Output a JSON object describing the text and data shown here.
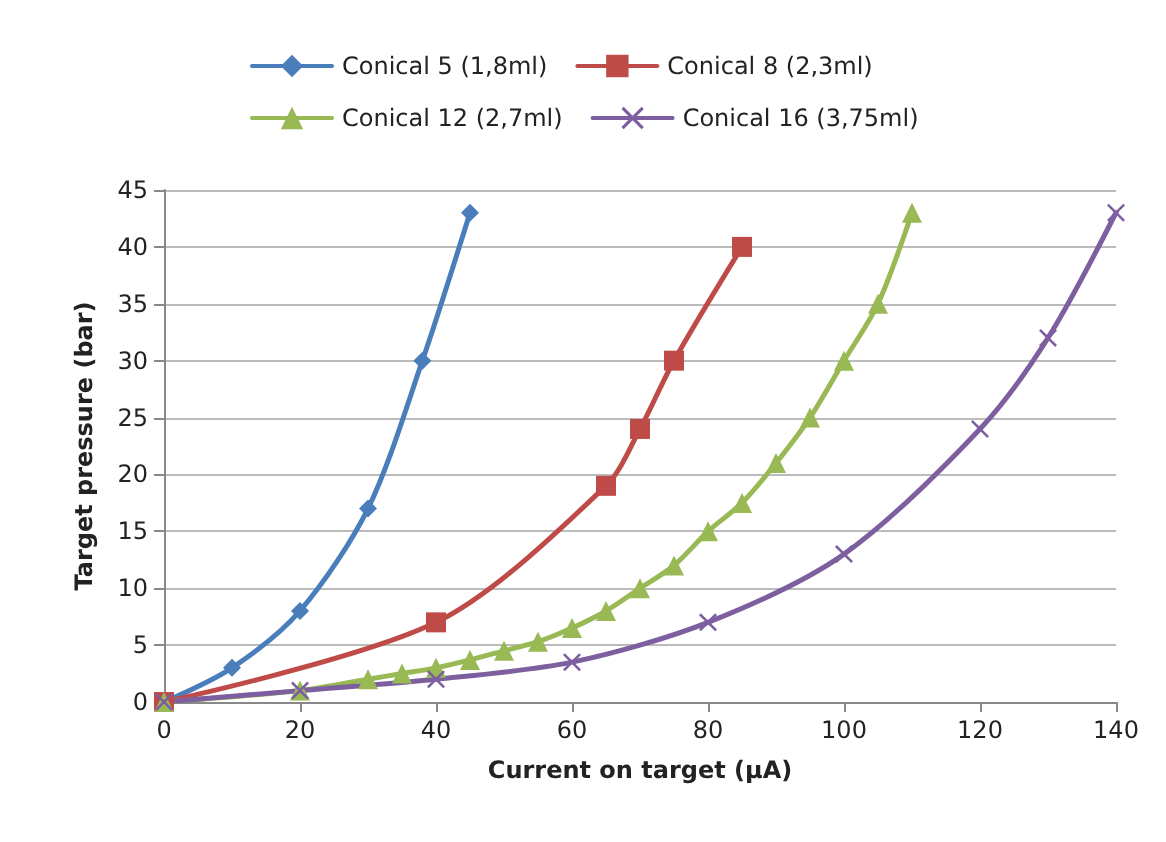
{
  "chart_data": {
    "type": "line",
    "xlabel": "Current on target (µA)",
    "ylabel": "Target pressure (bar)",
    "xlim": [
      0,
      140
    ],
    "xticks": [
      0,
      20,
      40,
      60,
      80,
      100,
      120,
      140
    ],
    "ylim": [
      0,
      45
    ],
    "yticks": [
      0,
      5,
      10,
      15,
      20,
      25,
      30,
      35,
      40,
      45
    ],
    "grid": "y",
    "legend": "top",
    "line_style": "solid",
    "series": [
      {
        "name": "Conical 5 (1,8ml)",
        "color": "#4a7ebb",
        "marker": "diamond",
        "x": [
          0,
          10,
          20,
          30,
          38,
          45
        ],
        "values": [
          0,
          3,
          8,
          17,
          30,
          43
        ]
      },
      {
        "name": "Conical 8 (2,3ml)",
        "color": "#be4b48",
        "marker": "square",
        "x": [
          0,
          40,
          65,
          70,
          75,
          85
        ],
        "values": [
          0,
          7,
          19,
          24,
          30,
          40
        ]
      },
      {
        "name": "Conical 12 (2,7ml)",
        "color": "#98b954",
        "marker": "triangle",
        "x": [
          0,
          20,
          30,
          35,
          40,
          45,
          50,
          55,
          60,
          65,
          70,
          75,
          80,
          85,
          90,
          95,
          100,
          105,
          110
        ],
        "values": [
          0,
          1,
          2,
          2.5,
          3,
          3.7,
          4.5,
          5.3,
          6.5,
          8,
          10,
          12,
          15,
          17.5,
          21,
          25,
          30,
          35,
          43
        ]
      },
      {
        "name": "Conical 16 (3,75ml)",
        "color": "#7d5fa0",
        "marker": "cross",
        "x": [
          0,
          20,
          40,
          60,
          80,
          100,
          120,
          130,
          140
        ],
        "values": [
          0,
          1,
          2,
          3.5,
          7,
          13,
          24,
          32,
          43
        ]
      }
    ]
  }
}
